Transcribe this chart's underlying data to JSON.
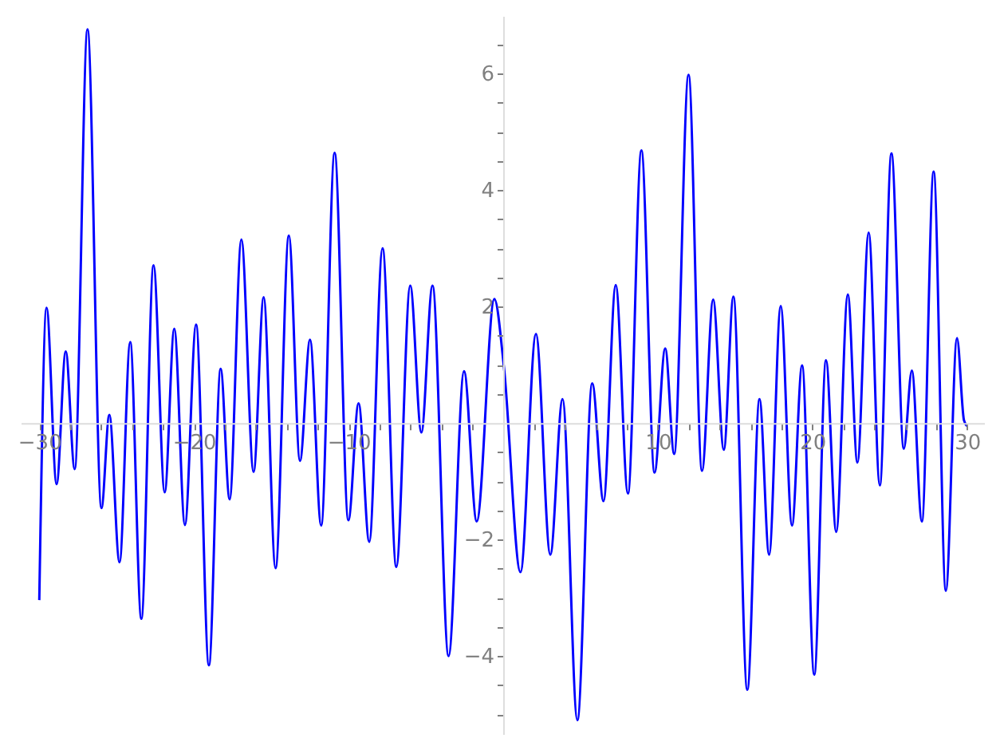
{
  "chart_data": {
    "type": "line",
    "x": [
      -30,
      -29.53,
      -28.88,
      -28.29,
      -27.71,
      -26.88,
      -25.98,
      -25.47,
      -24.81,
      -24.12,
      -23.4,
      -22.61,
      -21.89,
      -21.27,
      -20.58,
      -19.86,
      -19.03,
      -18.27,
      -17.69,
      -16.93,
      -16.14,
      -15.49,
      -14.72,
      -13.86,
      -13.14,
      -12.49,
      -11.77,
      -10.9,
      -10.01,
      -9.35,
      -8.66,
      -7.8,
      -6.91,
      -6.01,
      -5.29,
      -4.57,
      -3.53,
      -2.53,
      -1.71,
      -0.57,
      0.05,
      1.12,
      2.12,
      3.05,
      3.84,
      4.8,
      5.76,
      6.49,
      7.28,
      8.07,
      8.94,
      9.79,
      10.48,
      11.06,
      11.99,
      12.86,
      13.58,
      14.27,
      14.89,
      15.79,
      16.58,
      17.2,
      17.95,
      18.68,
      19.33,
      20.12,
      20.88,
      21.54,
      22.29,
      22.91,
      23.64,
      24.36,
      25.11,
      25.91,
      26.43,
      27.08,
      27.84,
      28.63,
      29.35,
      29.8,
      30
    ],
    "series": [
      {
        "color": "#0000ff",
        "values": [
          -3.04,
          1.98,
          -1.05,
          1.23,
          -0.79,
          6.76,
          -1.46,
          0.14,
          -2.39,
          1.39,
          -3.36,
          2.71,
          -1.19,
          1.62,
          -1.75,
          1.69,
          -4.16,
          0.93,
          -1.31,
          3.15,
          -0.84,
          2.16,
          -2.49,
          3.22,
          -0.65,
          1.43,
          -1.76,
          4.64,
          -1.67,
          0.34,
          -2.04,
          3.0,
          -2.47,
          2.36,
          -0.16,
          2.36,
          -4.0,
          0.89,
          -1.69,
          2.13,
          0.96,
          -2.56,
          1.53,
          -2.26,
          0.41,
          -5.1,
          0.68,
          -1.34,
          2.37,
          -1.21,
          4.68,
          -0.85,
          1.28,
          -0.53,
          5.98,
          -0.82,
          2.12,
          -0.46,
          2.17,
          -4.58,
          0.41,
          -2.26,
          2.01,
          -1.76,
          0.99,
          -4.32,
          1.08,
          -1.87,
          2.21,
          -0.68,
          3.27,
          -1.07,
          4.63,
          -0.44,
          0.9,
          -1.69,
          4.32,
          -2.88,
          1.46,
          0.05,
          -0.05
        ]
      }
    ],
    "xlim": [
      -31.2,
      31.1
    ],
    "ylim": [
      -5.34,
      6.99
    ],
    "xticks": [
      -30,
      {
        "value": -28,
        "label": null
      },
      {
        "value": -26,
        "label": null
      },
      {
        "value": -24,
        "label": null
      },
      {
        "value": -22,
        "label": null
      },
      -20,
      {
        "value": -18,
        "label": null
      },
      {
        "value": -16,
        "label": null
      },
      {
        "value": -14,
        "label": null
      },
      {
        "value": -12,
        "label": null
      },
      -10,
      {
        "value": -8,
        "label": null
      },
      {
        "value": -6,
        "label": null
      },
      {
        "value": -4,
        "label": null
      },
      {
        "value": -2,
        "label": null
      },
      {
        "value": 2,
        "label": null
      },
      {
        "value": 4,
        "label": null
      },
      {
        "value": 6,
        "label": null
      },
      {
        "value": 8,
        "label": null
      },
      10,
      {
        "value": 12,
        "label": null
      },
      {
        "value": 14,
        "label": null
      },
      {
        "value": 16,
        "label": null
      },
      {
        "value": 18,
        "label": null
      },
      20,
      {
        "value": 22,
        "label": null
      },
      {
        "value": 24,
        "label": null
      },
      {
        "value": 26,
        "label": null
      },
      {
        "value": 28,
        "label": null
      },
      30
    ],
    "yticks": [
      {
        "value": -5,
        "label": null
      },
      {
        "value": -4.5,
        "label": null
      },
      -4,
      {
        "value": -3.5,
        "label": null
      },
      {
        "value": -3,
        "label": null
      },
      {
        "value": -2.5,
        "label": null
      },
      -2,
      {
        "value": -1.5,
        "label": null
      },
      {
        "value": -1,
        "label": null
      },
      {
        "value": -0.5,
        "label": null
      },
      {
        "value": 0.5,
        "label": null
      },
      {
        "value": 1,
        "label": null
      },
      {
        "value": 1.5,
        "label": null
      },
      2,
      {
        "value": 2.5,
        "label": null
      },
      {
        "value": 3,
        "label": null
      },
      {
        "value": 3.5,
        "label": null
      },
      4,
      {
        "value": 4.5,
        "label": null
      },
      {
        "value": 5,
        "label": null
      },
      {
        "value": 5.5,
        "label": null
      },
      6,
      {
        "value": 6.5,
        "label": null
      }
    ],
    "grid": false,
    "marker": "none",
    "line_style": "solid"
  }
}
